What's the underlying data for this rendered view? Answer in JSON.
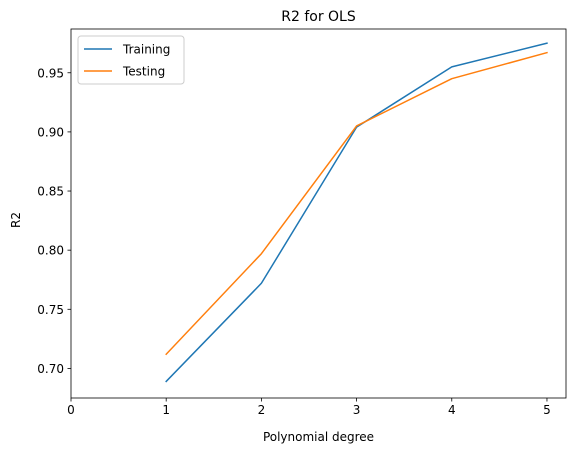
{
  "chart_data": {
    "type": "line",
    "title": "R2 for OLS",
    "xlabel": "Polynomial degree",
    "ylabel": "R2",
    "xlim": [
      0,
      5.2
    ],
    "ylim": [
      0.675,
      0.987
    ],
    "xticks": [
      0,
      1,
      2,
      3,
      4,
      5
    ],
    "yticks": [
      0.7,
      0.75,
      0.8,
      0.85,
      0.9,
      0.95
    ],
    "x": [
      1,
      2,
      3,
      4,
      5
    ],
    "series": [
      {
        "name": "Training",
        "color": "#1f77b4",
        "values": [
          0.689,
          0.772,
          0.904,
          0.955,
          0.975
        ]
      },
      {
        "name": "Testing",
        "color": "#ff7f0e",
        "values": [
          0.712,
          0.797,
          0.905,
          0.945,
          0.967
        ]
      }
    ],
    "legend": "top-left",
    "grid": false
  }
}
